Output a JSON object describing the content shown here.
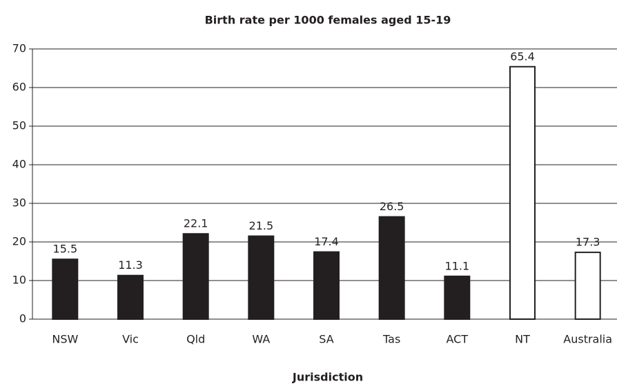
{
  "chart_data": {
    "type": "bar",
    "title": "Birth rate per 1000 females aged 15-19",
    "x_label": "Jurisdiction",
    "categories": [
      "NSW",
      "Vic",
      "Qld",
      "WA",
      "SA",
      "Tas",
      "ACT",
      "NT",
      "Australia"
    ],
    "values": [
      15.5,
      11.3,
      22.1,
      21.5,
      17.4,
      26.5,
      11.1,
      65.4,
      17.3
    ],
    "colors": [
      "#231f20",
      "#231f20",
      "#231f20",
      "#231f20",
      "#231f20",
      "#231f20",
      "#231f20",
      "#ffffff",
      "#ffffff"
    ],
    "ylim": [
      0,
      70
    ],
    "yticks": [
      0,
      10,
      20,
      30,
      40,
      50,
      60,
      70
    ],
    "grid": true
  }
}
